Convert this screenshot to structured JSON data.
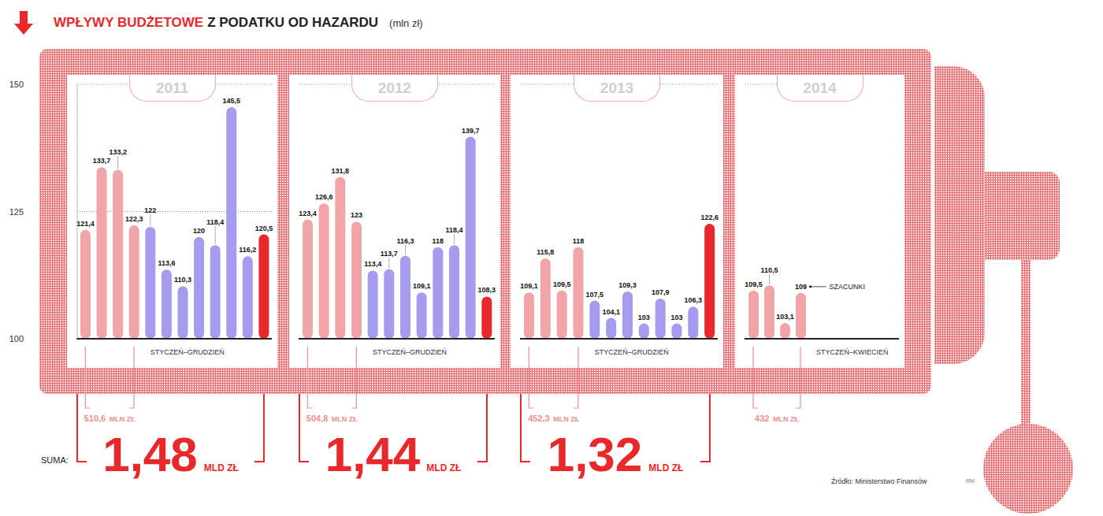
{
  "title": "WPŁYWY BUDŻETOWE Z PODATKU OD HAZARDU",
  "subtitle": "(mln zł)",
  "sum_label": "SUMA:",
  "source": "Źródło: Ministerstwo Finansów",
  "credit": "RM",
  "chart_data": [
    {
      "type": "bar",
      "title": "2011",
      "x_label": "STYCZEŃ–GRUDZIEŃ",
      "categories": [
        null,
        null,
        null,
        null,
        null,
        null,
        null,
        null,
        null,
        null,
        null,
        null
      ],
      "values": [
        121.4,
        133.7,
        133.2,
        122.3,
        122,
        113.6,
        110.3,
        120,
        118.4,
        145.5,
        116.2,
        120.5
      ],
      "value_labels": [
        "121,4",
        "133,7",
        "133,2",
        "122,3",
        "122",
        "113,6",
        "110,3",
        "120",
        "118,4",
        "145,5",
        "116,2",
        "120,5"
      ],
      "colors": [
        "#f2a5a8",
        "#f2a5a8",
        "#f2a5a8",
        "#f2a5a8",
        "#a59cf0",
        "#a59cf0",
        "#a59cf0",
        "#a59cf0",
        "#a59cf0",
        "#a59cf0",
        "#a59cf0",
        "#e8282b"
      ],
      "ylim": [
        100,
        150
      ],
      "yticks": [
        100,
        125,
        150
      ],
      "grid": true,
      "data_labels": true,
      "tick_labels": "y",
      "annotations": {
        "first_months": "510,6 MLN ZŁ",
        "year_total": "1,48 MLD ZŁ"
      }
    },
    {
      "type": "bar",
      "title": "2012",
      "x_label": "STYCZEŃ–GRUDZIEŃ",
      "categories": [
        null,
        null,
        null,
        null,
        null,
        null,
        null,
        null,
        null,
        null,
        null,
        null
      ],
      "values": [
        123.4,
        126.6,
        131.8,
        123,
        113.4,
        113.7,
        116.3,
        109.1,
        118,
        118.4,
        139.7,
        108.3
      ],
      "value_labels": [
        "123,4",
        "126,6",
        "131,8",
        "123",
        "113,4",
        "113,7",
        "116,3",
        "109,1",
        "118",
        "118,4",
        "139,7",
        "108,3"
      ],
      "colors": [
        "#f2a5a8",
        "#f2a5a8",
        "#f2a5a8",
        "#f2a5a8",
        "#a59cf0",
        "#a59cf0",
        "#a59cf0",
        "#a59cf0",
        "#a59cf0",
        "#a59cf0",
        "#a59cf0",
        "#e8282b"
      ],
      "ylim": [
        100,
        150
      ],
      "yticks": [
        100,
        125,
        150
      ],
      "grid": true,
      "data_labels": true,
      "tick_labels": false,
      "annotations": {
        "first_months": "504,8 MLN ZŁ",
        "year_total": "1,44 MLD ZŁ"
      }
    },
    {
      "type": "bar",
      "title": "2013",
      "x_label": "STYCZEŃ–GRUDZIEŃ",
      "categories": [
        null,
        null,
        null,
        null,
        null,
        null,
        null,
        null,
        null,
        null,
        null,
        null
      ],
      "values": [
        109.1,
        115.8,
        109.5,
        118,
        107.5,
        104.1,
        109.3,
        103,
        107.9,
        103,
        106.3,
        122.6
      ],
      "value_labels": [
        "109,1",
        "115,8",
        "109,5",
        "118",
        "107,5",
        "104,1",
        "109,3",
        "103",
        "107,9",
        "103",
        "106,3",
        "122,6"
      ],
      "colors": [
        "#f2a5a8",
        "#f2a5a8",
        "#f2a5a8",
        "#f2a5a8",
        "#a59cf0",
        "#a59cf0",
        "#a59cf0",
        "#a59cf0",
        "#a59cf0",
        "#a59cf0",
        "#a59cf0",
        "#e8282b"
      ],
      "ylim": [
        100,
        150
      ],
      "yticks": [
        100,
        125,
        150
      ],
      "grid": true,
      "data_labels": true,
      "tick_labels": false,
      "annotations": {
        "first_months": "452,3 MLN ZŁ",
        "year_total": "1,32 MLD ZŁ"
      }
    },
    {
      "type": "bar",
      "title": "2014",
      "x_label": "STYCZEŃ–KWIECIEŃ",
      "categories": [
        null,
        null,
        null,
        null
      ],
      "values": [
        109.5,
        110.5,
        103.1,
        109
      ],
      "value_labels": [
        "109,5",
        "110,5",
        "103,1",
        "109"
      ],
      "colors": [
        "#f2a5a8",
        "#f2a5a8",
        "#f2a5a8",
        "#f2a5a8"
      ],
      "ylim": [
        100,
        150
      ],
      "yticks": [
        100,
        125,
        150
      ],
      "grid": true,
      "data_labels": true,
      "tick_labels": false,
      "annotations": {
        "first_months": "432 MLN ZŁ",
        "note": "SZACUNKI"
      }
    }
  ]
}
